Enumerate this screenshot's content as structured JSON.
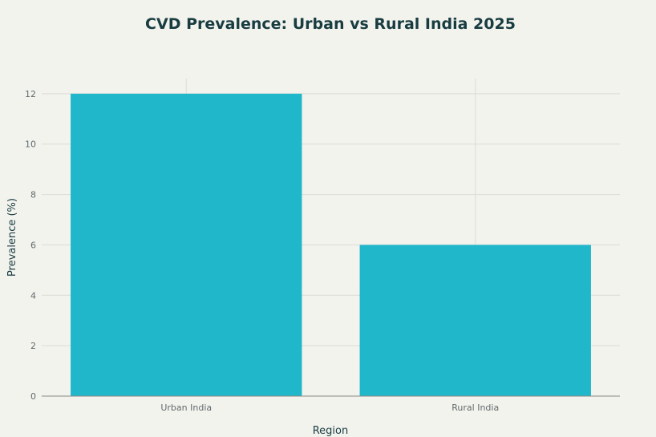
{
  "chart_data": {
    "type": "bar",
    "title": "CVD Prevalence: Urban vs Rural India 2025",
    "xlabel": "Region",
    "ylabel": "Prevalence (%)",
    "categories": [
      "Urban India",
      "Rural India"
    ],
    "values": [
      12,
      6
    ],
    "ylim": [
      0,
      12.6
    ],
    "yticks": [
      0,
      2,
      4,
      6,
      8,
      10,
      12
    ],
    "grid": true,
    "legend": "none",
    "colors": {
      "bar": "#21b7cb",
      "background": "#f3f3ee",
      "grid": "#dcdcd6",
      "axis": "#8a8a85",
      "title": "#183c40",
      "tick": "#5f6b6c"
    }
  }
}
